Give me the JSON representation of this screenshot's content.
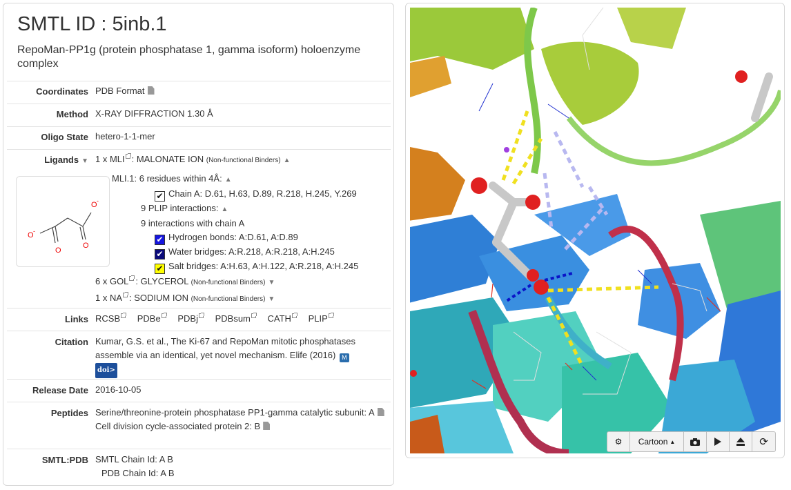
{
  "header": {
    "title": "SMTL ID : 5inb.1",
    "subtitle": "RepoMan-PP1g (protein phosphatase 1, gamma isoform) holoenzyme complex"
  },
  "coordinates": {
    "label": "Coordinates",
    "value": "PDB Format"
  },
  "method": {
    "label": "Method",
    "value": "X-RAY DIFFRACTION 1.30 Å"
  },
  "oligo": {
    "label": "Oligo State",
    "value": "hetero-1-1-mer"
  },
  "ligands": {
    "label": "Ligands",
    "mli": {
      "count": "1 x MLI",
      "name": ": MALONATE ION",
      "tag": "(Non-functional Binders)"
    },
    "mli_detail": {
      "residues_title": "MLI.1: 6 residues within 4Å:",
      "chain_a": "Chain A: D.61, H.63, D.89, R.218, H.245, Y.269",
      "plip": "9 PLIP interactions:",
      "with_chain": "9 interactions with chain A",
      "hbond": "Hydrogen bonds: A:D.61, A:D.89",
      "water": "Water bridges: A:R.218, A:R.218, A:H.245",
      "salt": "Salt bridges: A:H.63, A:H.122, A:R.218, A:H.245"
    },
    "gol": {
      "count": "6 x GOL",
      "name": ": GLYCEROL",
      "tag": "(Non-functional Binders)"
    },
    "na": {
      "count": "1 x NA",
      "name": ": SODIUM ION",
      "tag": "(Non-functional Binders)"
    },
    "structure_labels": {
      "o": "O",
      "o_minus": "O",
      "minus": "-"
    }
  },
  "links": {
    "label": "Links",
    "items": [
      "RCSB",
      "PDBe",
      "PDBj",
      "PDBsum",
      "CATH",
      "PLIP"
    ]
  },
  "citation": {
    "label": "Citation",
    "text": "Kumar, G.S. et al., The Ki-67 and RepoMan mitotic phosphatases assemble via an identical, yet novel mechanism. Elife (2016)",
    "doi": "doi>"
  },
  "release": {
    "label": "Release Date",
    "value": "2016-10-05"
  },
  "peptides": {
    "label": "Peptides",
    "p1": "Serine/threonine-protein phosphatase PP1-gamma catalytic subunit: A",
    "p2": "Cell division cycle-associated protein 2: B"
  },
  "smtlpdb": {
    "label": "SMTL:PDB",
    "smtl": "SMTL Chain Id: A B",
    "pdb": "PDB Chain Id: A B"
  },
  "viewer": {
    "mode_label": "Cartoon",
    "toolbar_icons": [
      "gear-icon",
      "caret-up-icon",
      "camera-icon",
      "play-icon",
      "eject-icon",
      "refresh-icon"
    ]
  },
  "colors": {
    "doi_blue": "#1d4f9b",
    "hbond_blue": "#1616e0",
    "water_navy": "#0a0a7a",
    "salt_yellow": "#ffff00"
  }
}
